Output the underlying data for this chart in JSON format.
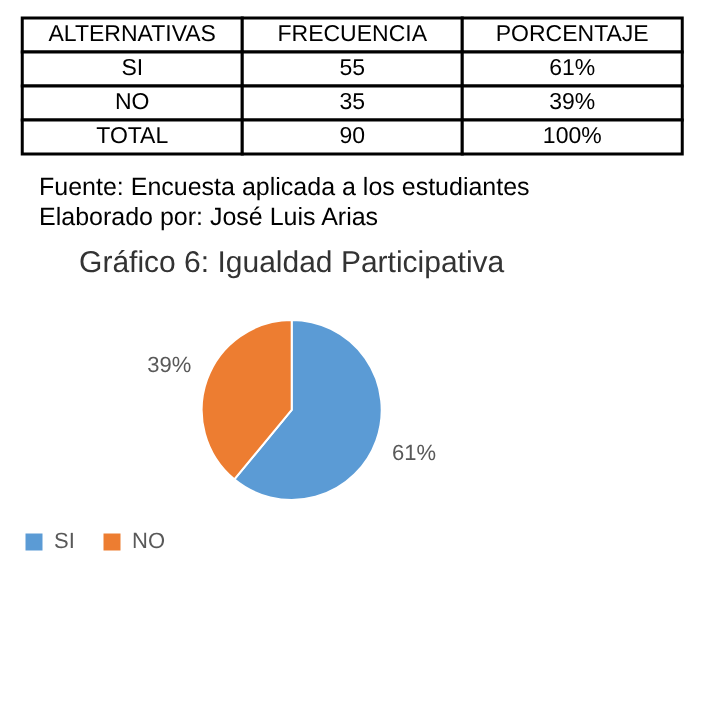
{
  "chart_data": [
    {
      "type": "other",
      "ylabel": "ALTERNATIVAS",
      "categories": [
        "FRECUENCIA",
        "PORCENTAJE"
      ],
      "y_categories": [
        "SI",
        "NO",
        "TOTAL"
      ],
      "cell_labels": [
        [
          "55",
          "61%"
        ],
        [
          "35",
          "39%"
        ],
        [
          "90",
          "100%"
        ]
      ],
      "annotations": [
        "Fuente: Encuesta aplicada a los estudiantes",
        "Elaborado por: José Luis Arias"
      ]
    },
    {
      "type": "pie",
      "title": "Gráfico 6: Igualdad Participativa",
      "categories": [
        "SI",
        "NO"
      ],
      "values": [
        61,
        39
      ],
      "colors": [
        "#5b9bd5",
        "#ed7d31"
      ],
      "value_labels": [
        "61%",
        "39%"
      ],
      "legend": "bottom"
    }
  ]
}
